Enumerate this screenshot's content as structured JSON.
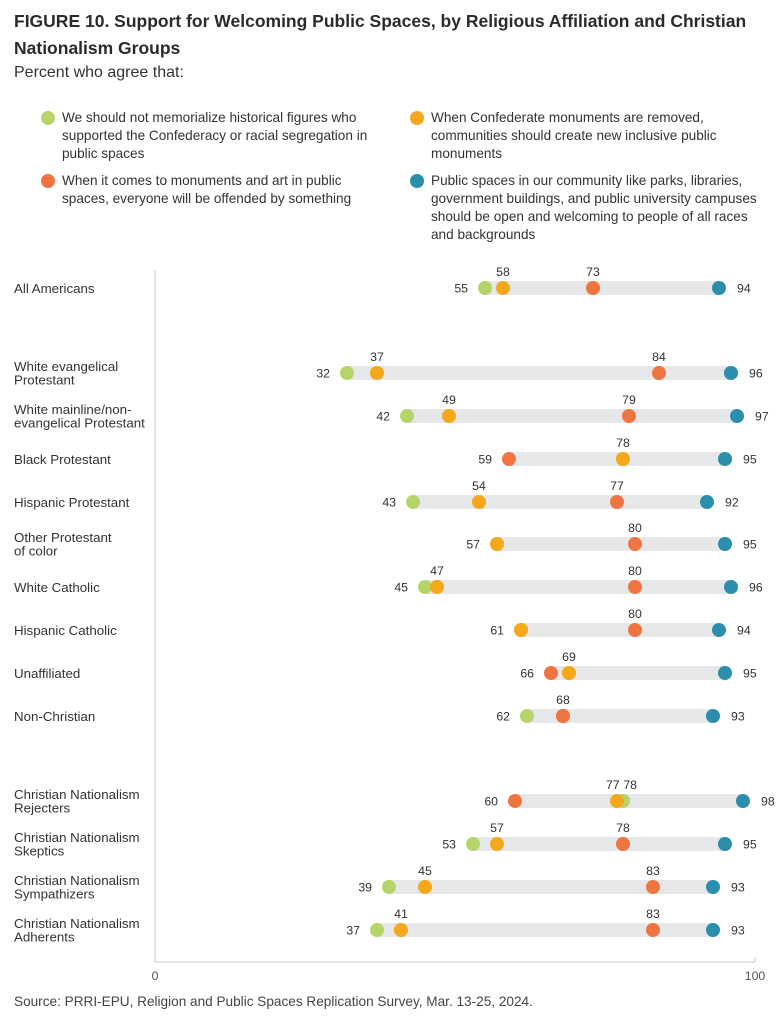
{
  "figure": {
    "title": "FIGURE 10. Support for Welcoming Public Spaces, by Religious Affiliation and Christian Nationalism Groups",
    "subtitle": "Percent who agree that:",
    "source": "Source: PRRI-EPU, Religion and Public Spaces Replication Survey, Mar. 13-25, 2024."
  },
  "legend": [
    {
      "key": "memorialize",
      "label": "We should not memorialize historical figures who supported the Confederacy or racial segregation in public spaces",
      "color": "#b5d56a"
    },
    {
      "key": "new_monuments",
      "label": "When Confederate monuments are removed, communities should create new inclusive public monuments",
      "color": "#f5a81c"
    },
    {
      "key": "offended",
      "label": "When it comes to monuments and art in public spaces, everyone will be offended by something",
      "color": "#ee7541"
    },
    {
      "key": "welcoming",
      "label": "Public spaces in our community like parks, libraries, government buildings, and public university campuses should be open and welcoming to people of all races and backgrounds",
      "color": "#2b8ead"
    }
  ],
  "chart_data": {
    "type": "scatter",
    "subtype": "dot-range",
    "xlim": [
      0,
      100
    ],
    "x_ticks": [
      "0",
      "100"
    ],
    "series_order": [
      "memorialize",
      "new_monuments",
      "offended",
      "welcoming"
    ],
    "track_color": "#e6e7e8",
    "rows": [
      {
        "label": [
          "All Americans"
        ],
        "values": {
          "memorialize": 55,
          "new_monuments": 58,
          "offended": 73,
          "welcoming": 94
        }
      },
      {
        "label": [
          "White evangelical",
          "Protestant"
        ],
        "values": {
          "memorialize": 32,
          "new_monuments": 37,
          "offended": 84,
          "welcoming": 96
        }
      },
      {
        "label": [
          "White mainline/non-",
          "evangelical Protestant"
        ],
        "values": {
          "memorialize": 42,
          "new_monuments": 49,
          "offended": 79,
          "welcoming": 97
        }
      },
      {
        "label": [
          "Black Protestant"
        ],
        "values": {
          "memorialize": 78,
          "new_monuments": 78,
          "offended": 59,
          "welcoming": 95
        }
      },
      {
        "label": [
          "Hispanic Protestant"
        ],
        "values": {
          "memorialize": 43,
          "new_monuments": 54,
          "offended": 77,
          "welcoming": 92
        }
      },
      {
        "label": [
          "Other Protestant",
          "of color"
        ],
        "values": {
          "memorialize": 57,
          "new_monuments": 57,
          "offended": 80,
          "welcoming": 95
        }
      },
      {
        "label": [
          "White Catholic"
        ],
        "values": {
          "memorialize": 45,
          "new_monuments": 47,
          "offended": 80,
          "welcoming": 96
        }
      },
      {
        "label": [
          "Hispanic Catholic"
        ],
        "values": {
          "memorialize": 61,
          "new_monuments": 61,
          "offended": 80,
          "welcoming": 94
        }
      },
      {
        "label": [
          "Unaffiliated"
        ],
        "values": {
          "memorialize": 69,
          "new_monuments": 69,
          "offended": 66,
          "welcoming": 95
        }
      },
      {
        "label": [
          "Non-Christian"
        ],
        "values": {
          "memorialize": 62,
          "new_monuments": 68,
          "offended": 68,
          "welcoming": 93
        }
      },
      {
        "label": [
          "Christian Nationalism",
          "Rejecters"
        ],
        "values": {
          "memorialize": 78,
          "new_monuments": 77,
          "offended": 60,
          "welcoming": 98
        }
      },
      {
        "label": [
          "Christian Nationalism",
          "Skeptics"
        ],
        "values": {
          "memorialize": 53,
          "new_monuments": 57,
          "offended": 78,
          "welcoming": 95
        }
      },
      {
        "label": [
          "Christian Nationalism",
          "Sympathizers"
        ],
        "values": {
          "memorialize": 39,
          "new_monuments": 45,
          "offended": 83,
          "welcoming": 93
        }
      },
      {
        "label": [
          "Christian Nationalism",
          "Adherents"
        ],
        "values": {
          "memorialize": 37,
          "new_monuments": 41,
          "offended": 83,
          "welcoming": 93
        }
      }
    ],
    "value_labels": [
      [
        {
          "v": "55",
          "pos": "left"
        },
        {
          "v": "58",
          "pos": "above",
          "at": 58
        },
        {
          "v": "73",
          "pos": "above",
          "at": 73
        },
        {
          "v": "94",
          "pos": "right"
        }
      ],
      [
        {
          "v": "32",
          "pos": "left"
        },
        {
          "v": "37",
          "pos": "above",
          "at": 37
        },
        {
          "v": "84",
          "pos": "above",
          "at": 84
        },
        {
          "v": "96",
          "pos": "right"
        }
      ],
      [
        {
          "v": "42",
          "pos": "left"
        },
        {
          "v": "49",
          "pos": "above",
          "at": 49
        },
        {
          "v": "79",
          "pos": "above",
          "at": 79
        },
        {
          "v": "97",
          "pos": "right"
        }
      ],
      [
        {
          "v": "59",
          "pos": "left"
        },
        {
          "v": "78",
          "pos": "above",
          "at": 78
        },
        {
          "v": "95",
          "pos": "right"
        }
      ],
      [
        {
          "v": "43",
          "pos": "left"
        },
        {
          "v": "54",
          "pos": "above",
          "at": 54
        },
        {
          "v": "77",
          "pos": "above",
          "at": 77
        },
        {
          "v": "92",
          "pos": "right"
        }
      ],
      [
        {
          "v": "57",
          "pos": "left"
        },
        {
          "v": "80",
          "pos": "above",
          "at": 80
        },
        {
          "v": "95",
          "pos": "right"
        }
      ],
      [
        {
          "v": "45",
          "pos": "left"
        },
        {
          "v": "47",
          "pos": "above",
          "at": 47
        },
        {
          "v": "80",
          "pos": "above",
          "at": 80
        },
        {
          "v": "96",
          "pos": "right"
        }
      ],
      [
        {
          "v": "61",
          "pos": "left"
        },
        {
          "v": "80",
          "pos": "above",
          "at": 80
        },
        {
          "v": "94",
          "pos": "right"
        }
      ],
      [
        {
          "v": "66",
          "pos": "left"
        },
        {
          "v": "69",
          "pos": "above",
          "at": 69
        },
        {
          "v": "95",
          "pos": "right"
        }
      ],
      [
        {
          "v": "62",
          "pos": "left"
        },
        {
          "v": "68",
          "pos": "above",
          "at": 68
        },
        {
          "v": "93",
          "pos": "right"
        }
      ],
      [
        {
          "v": "60",
          "pos": "left"
        },
        {
          "v": "77",
          "pos": "above",
          "at": 76.3
        },
        {
          "v": "78",
          "pos": "above",
          "at": 79.2
        },
        {
          "v": "98",
          "pos": "right"
        }
      ],
      [
        {
          "v": "53",
          "pos": "left"
        },
        {
          "v": "57",
          "pos": "above",
          "at": 57
        },
        {
          "v": "78",
          "pos": "above",
          "at": 78
        },
        {
          "v": "95",
          "pos": "right"
        }
      ],
      [
        {
          "v": "39",
          "pos": "left"
        },
        {
          "v": "45",
          "pos": "above",
          "at": 45
        },
        {
          "v": "83",
          "pos": "above",
          "at": 83
        },
        {
          "v": "93",
          "pos": "right"
        }
      ],
      [
        {
          "v": "37",
          "pos": "left"
        },
        {
          "v": "41",
          "pos": "above",
          "at": 41
        },
        {
          "v": "83",
          "pos": "above",
          "at": 83
        },
        {
          "v": "93",
          "pos": "right"
        }
      ]
    ]
  }
}
